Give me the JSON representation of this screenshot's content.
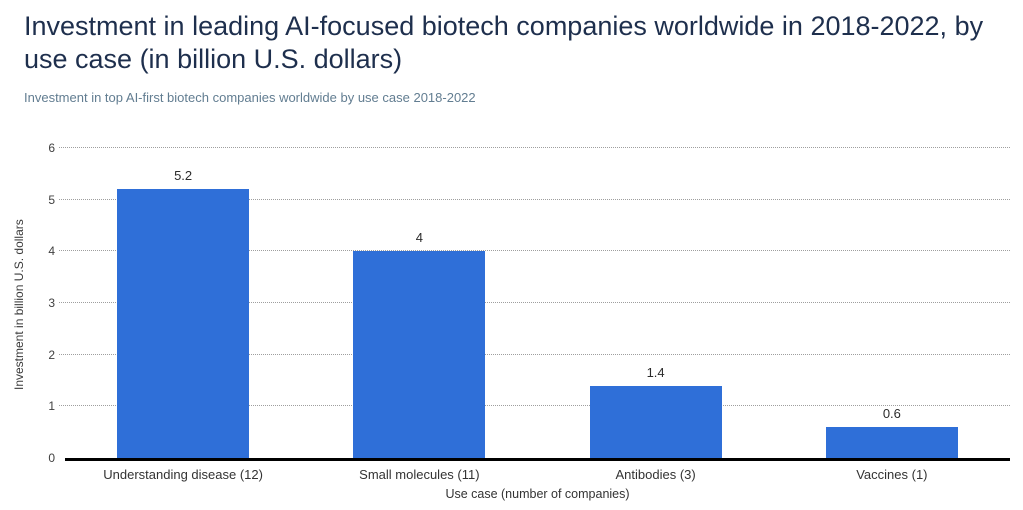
{
  "chart_data": {
    "type": "bar",
    "title": "Investment in leading AI-focused biotech companies worldwide in 2018-2022, by use case (in billion U.S. dollars)",
    "subtitle": "Investment in top AI-first biotech companies worldwide by use case 2018-2022",
    "categories": [
      "Understanding disease (12)",
      "Small molecules (11)",
      "Antibodies (3)",
      "Vaccines (1)"
    ],
    "values": [
      5.2,
      4,
      1.4,
      0.6
    ],
    "value_labels": [
      "5.2",
      "4",
      "1.4",
      "0.6"
    ],
    "xlabel": "Use case (number of companies)",
    "ylabel": "Investment in billion U.S. dollars",
    "ylim": [
      0,
      6
    ],
    "yticks": [
      0,
      1,
      2,
      3,
      4,
      5,
      6
    ],
    "grid": "horizontal dotted",
    "legend": "none",
    "bar_color": "#2f6fd8",
    "axis_line_color": "#000000"
  }
}
